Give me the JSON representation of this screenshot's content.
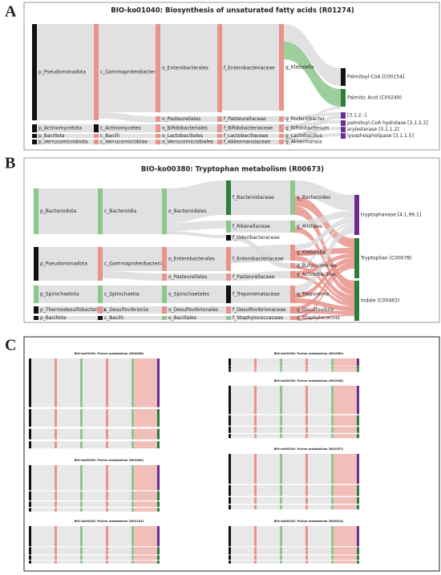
{
  "panels": [
    {
      "label": "A",
      "title": "BIO-ko01040: Biosynthesis of unsaturated fatty acids (R01274)",
      "columns": [
        [
          "p_Pseudomonadota",
          "p_Actinomycetota",
          "p_Bacillota",
          "p_Verrucomicrobiota"
        ],
        [
          "c_Gammaproteobacteria",
          "c_Actinomycetes",
          "c_Bacilli",
          "c_Verrucomicrobiae"
        ],
        [
          "o_Enterobacterales",
          "o_Pasteurellales",
          "o_Bifidobacteriales",
          "o_Lactobacillales",
          "o_Verrucomicrobiales"
        ],
        [
          "f_Enterobacteriaceae",
          "f_Pasteurellaceae",
          "f_Bifidobacteriaceae",
          "f_Lactobacillaceae",
          "f_Akkermansiaceae"
        ],
        [
          "g_Klebsiella",
          "g_Rodentibacter",
          "g_Bifidobacterium",
          "g_Lactobacillus",
          "g_Akkermansia"
        ],
        [
          "Palmitoyl-CoA [C00154]",
          "Palmitic Acid (C00249)",
          "[3.1.2.-]",
          "palmitoyl-CoA hydrolase [3.1.2.2]",
          "arylesterase [3.1.1.2]",
          "lysophospholipase [3.1.1.5]"
        ]
      ]
    },
    {
      "label": "B",
      "title": "BIO-ko00380: Tryptophan metabolism (R00673)",
      "columns": [
        [
          "p_Bacteroidota",
          "p_Pseudomonadota",
          "p_Spirochaetota",
          "p_Thermodesulfobacteriota",
          "p_Bacillota"
        ],
        [
          "c_Bacteroidia",
          "c_Gammaproteobacteria",
          "c_Spirochaetia",
          "c_Desulfovibrionia",
          "c_Bacilli"
        ],
        [
          "o_Bacteroidales",
          "o_Enterobacterales",
          "o_Pasteurellales",
          "o_Spirochaetales",
          "o_Desulfovibrionales",
          "o_Bacillales"
        ],
        [
          "f_Bacteroidaceae",
          "f_Rikenellaceae",
          "f_Odoribacteraceae",
          "f_Enterobacteriaceae",
          "f_Pasteurellaceae",
          "f_Treponemataceae",
          "f_Desulfovibrionaceae",
          "f_Staphylococcaceae"
        ],
        [
          "g_Bacteroides",
          "g_Alistipes",
          "g_Klebsiella",
          "g_Butyricimonas",
          "g_Actinobacillus",
          "g_Treponema",
          "g_Desulfovibrio",
          "g_Staphylococcus"
        ],
        [
          "tryptophanase [4.1.99.1]",
          "Tryptophan (C00078)",
          "Indole (C00463)"
        ]
      ]
    },
    {
      "label": "C",
      "subtitles": [
        "BIO-ko00230: Purine metabolism (R00088)",
        "BIO-ko00230: Purine metabolism (R02089)",
        "BIO-ko00230: Purine metabolism (R02142)",
        "BIO-ko00230: Purine metabolism (R01560)",
        "BIO-ko00230: Purine metabolism (R01968)",
        "BIO-ko00230: Purine metabolism (R02557)",
        "BIO-ko00230: Purine metabolism (R00514)"
      ]
    }
  ]
}
